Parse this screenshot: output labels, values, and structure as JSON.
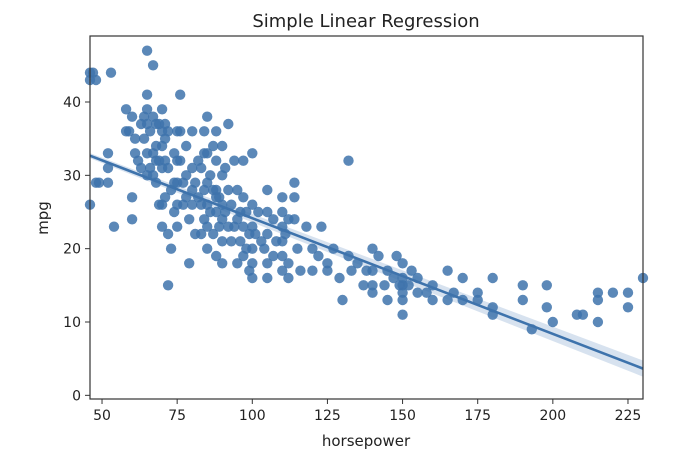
{
  "chart_data": {
    "type": "scatter",
    "title": "Simple Linear Regression",
    "xlabel": "horsepower",
    "ylabel": "mpg",
    "xlim": [
      46,
      230
    ],
    "ylim": [
      -0.5,
      49
    ],
    "xticks": [
      50,
      75,
      100,
      125,
      150,
      175,
      200,
      225
    ],
    "yticks": [
      0,
      10,
      20,
      30,
      40
    ],
    "grid": false,
    "legend": "none",
    "colors": {
      "points": "#3e73ac",
      "line": "#3e73ac",
      "band": "#c9d8ea"
    },
    "regression": {
      "slope": -0.1578,
      "intercept": 39.94,
      "ci_at_xlim": [
        0.35,
        1.1
      ]
    },
    "points": [
      [
        46,
        26
      ],
      [
        46,
        43
      ],
      [
        46,
        44
      ],
      [
        47,
        44
      ],
      [
        48,
        43
      ],
      [
        48,
        29
      ],
      [
        49,
        29
      ],
      [
        52,
        33
      ],
      [
        52,
        31
      ],
      [
        52,
        29
      ],
      [
        53,
        44
      ],
      [
        54,
        23
      ],
      [
        58,
        39
      ],
      [
        58,
        36
      ],
      [
        59,
        36
      ],
      [
        60,
        38
      ],
      [
        60,
        27
      ],
      [
        60,
        24
      ],
      [
        61,
        33
      ],
      [
        61,
        35
      ],
      [
        62,
        32
      ],
      [
        63,
        37
      ],
      [
        63,
        31
      ],
      [
        64,
        38
      ],
      [
        64,
        35
      ],
      [
        65,
        47
      ],
      [
        65,
        41
      ],
      [
        65,
        39
      ],
      [
        65,
        37
      ],
      [
        65,
        33
      ],
      [
        65,
        30
      ],
      [
        66,
        36
      ],
      [
        66,
        31
      ],
      [
        67,
        38
      ],
      [
        67,
        45
      ],
      [
        67,
        33
      ],
      [
        67,
        30
      ],
      [
        68,
        37
      ],
      [
        68,
        34
      ],
      [
        68,
        32
      ],
      [
        68,
        29
      ],
      [
        69,
        37
      ],
      [
        69,
        32
      ],
      [
        69,
        26
      ],
      [
        70,
        39
      ],
      [
        70,
        36
      ],
      [
        70,
        34
      ],
      [
        70,
        31
      ],
      [
        70,
        26
      ],
      [
        70,
        23
      ],
      [
        71,
        37
      ],
      [
        71,
        35
      ],
      [
        71,
        32
      ],
      [
        71,
        27
      ],
      [
        72,
        36
      ],
      [
        72,
        31
      ],
      [
        72,
        22
      ],
      [
        72,
        15
      ],
      [
        73,
        28
      ],
      [
        73,
        20
      ],
      [
        74,
        33
      ],
      [
        74,
        29
      ],
      [
        74,
        25
      ],
      [
        75,
        36
      ],
      [
        75,
        32
      ],
      [
        75,
        29
      ],
      [
        75,
        26
      ],
      [
        75,
        23
      ],
      [
        76,
        41
      ],
      [
        76,
        36
      ],
      [
        76,
        32
      ],
      [
        77,
        29
      ],
      [
        77,
        26
      ],
      [
        78,
        34
      ],
      [
        78,
        30
      ],
      [
        78,
        27
      ],
      [
        79,
        24
      ],
      [
        79,
        18
      ],
      [
        80,
        36
      ],
      [
        80,
        31
      ],
      [
        80,
        28
      ],
      [
        80,
        26
      ],
      [
        81,
        29
      ],
      [
        81,
        22
      ],
      [
        82,
        32
      ],
      [
        82,
        27
      ],
      [
        83,
        31
      ],
      [
        83,
        26
      ],
      [
        83,
        22
      ],
      [
        84,
        36
      ],
      [
        84,
        33
      ],
      [
        84,
        28
      ],
      [
        84,
        24
      ],
      [
        85,
        38
      ],
      [
        85,
        33
      ],
      [
        85,
        29
      ],
      [
        85,
        26
      ],
      [
        85,
        23
      ],
      [
        85,
        20
      ],
      [
        86,
        30
      ],
      [
        86,
        25
      ],
      [
        87,
        34
      ],
      [
        87,
        28
      ],
      [
        87,
        22
      ],
      [
        88,
        36
      ],
      [
        88,
        32
      ],
      [
        88,
        28
      ],
      [
        88,
        25
      ],
      [
        88,
        19
      ],
      [
        88,
        27
      ],
      [
        89,
        27
      ],
      [
        89,
        23
      ],
      [
        90,
        34
      ],
      [
        90,
        30
      ],
      [
        90,
        26
      ],
      [
        90,
        24
      ],
      [
        90,
        21
      ],
      [
        90,
        18
      ],
      [
        91,
        31
      ],
      [
        91,
        25
      ],
      [
        92,
        37
      ],
      [
        92,
        28
      ],
      [
        92,
        23
      ],
      [
        93,
        26
      ],
      [
        93,
        21
      ],
      [
        94,
        32
      ],
      [
        94,
        23
      ],
      [
        95,
        28
      ],
      [
        95,
        24
      ],
      [
        95,
        18
      ],
      [
        96,
        25
      ],
      [
        96,
        21
      ],
      [
        97,
        32
      ],
      [
        97,
        27
      ],
      [
        97,
        23
      ],
      [
        97,
        19
      ],
      [
        98,
        25
      ],
      [
        98,
        20
      ],
      [
        99,
        22
      ],
      [
        99,
        17
      ],
      [
        100,
        33
      ],
      [
        100,
        26
      ],
      [
        100,
        23
      ],
      [
        100,
        20
      ],
      [
        100,
        18
      ],
      [
        100,
        16
      ],
      [
        101,
        22
      ],
      [
        102,
        25
      ],
      [
        103,
        21
      ],
      [
        104,
        20
      ],
      [
        105,
        28
      ],
      [
        105,
        25
      ],
      [
        105,
        22
      ],
      [
        105,
        18
      ],
      [
        105,
        16
      ],
      [
        107,
        24
      ],
      [
        107,
        19
      ],
      [
        108,
        21
      ],
      [
        110,
        27
      ],
      [
        110,
        25
      ],
      [
        110,
        23
      ],
      [
        110,
        21
      ],
      [
        110,
        19
      ],
      [
        110,
        17
      ],
      [
        111,
        22
      ],
      [
        112,
        24
      ],
      [
        112,
        18
      ],
      [
        112,
        16
      ],
      [
        114,
        29
      ],
      [
        114,
        27
      ],
      [
        114,
        24
      ],
      [
        115,
        20
      ],
      [
        116,
        17
      ],
      [
        118,
        23
      ],
      [
        120,
        20
      ],
      [
        120,
        17
      ],
      [
        122,
        19
      ],
      [
        123,
        23
      ],
      [
        125,
        17
      ],
      [
        125,
        18
      ],
      [
        127,
        20
      ],
      [
        129,
        16
      ],
      [
        130,
        13
      ],
      [
        132,
        32
      ],
      [
        132,
        19
      ],
      [
        133,
        17
      ],
      [
        135,
        18
      ],
      [
        137,
        15
      ],
      [
        138,
        17
      ],
      [
        140,
        20
      ],
      [
        140,
        17
      ],
      [
        140,
        15
      ],
      [
        140,
        14
      ],
      [
        142,
        19
      ],
      [
        144,
        15
      ],
      [
        145,
        17
      ],
      [
        145,
        13
      ],
      [
        147,
        16
      ],
      [
        148,
        19
      ],
      [
        149,
        15
      ],
      [
        150,
        18
      ],
      [
        150,
        16
      ],
      [
        150,
        15
      ],
      [
        150,
        14
      ],
      [
        150,
        13
      ],
      [
        150,
        11
      ],
      [
        152,
        15
      ],
      [
        153,
        17
      ],
      [
        155,
        14
      ],
      [
        155,
        16
      ],
      [
        158,
        14
      ],
      [
        160,
        13
      ],
      [
        160,
        15
      ],
      [
        165,
        13
      ],
      [
        165,
        17
      ],
      [
        167,
        14
      ],
      [
        170,
        13
      ],
      [
        170,
        16
      ],
      [
        175,
        13
      ],
      [
        175,
        14
      ],
      [
        180,
        12
      ],
      [
        180,
        16
      ],
      [
        180,
        11
      ],
      [
        190,
        13
      ],
      [
        190,
        15
      ],
      [
        193,
        9
      ],
      [
        198,
        15
      ],
      [
        198,
        12
      ],
      [
        200,
        10
      ],
      [
        208,
        11
      ],
      [
        210,
        11
      ],
      [
        215,
        14
      ],
      [
        215,
        13
      ],
      [
        215,
        10
      ],
      [
        220,
        14
      ],
      [
        225,
        14
      ],
      [
        225,
        12
      ],
      [
        230,
        16
      ]
    ]
  }
}
